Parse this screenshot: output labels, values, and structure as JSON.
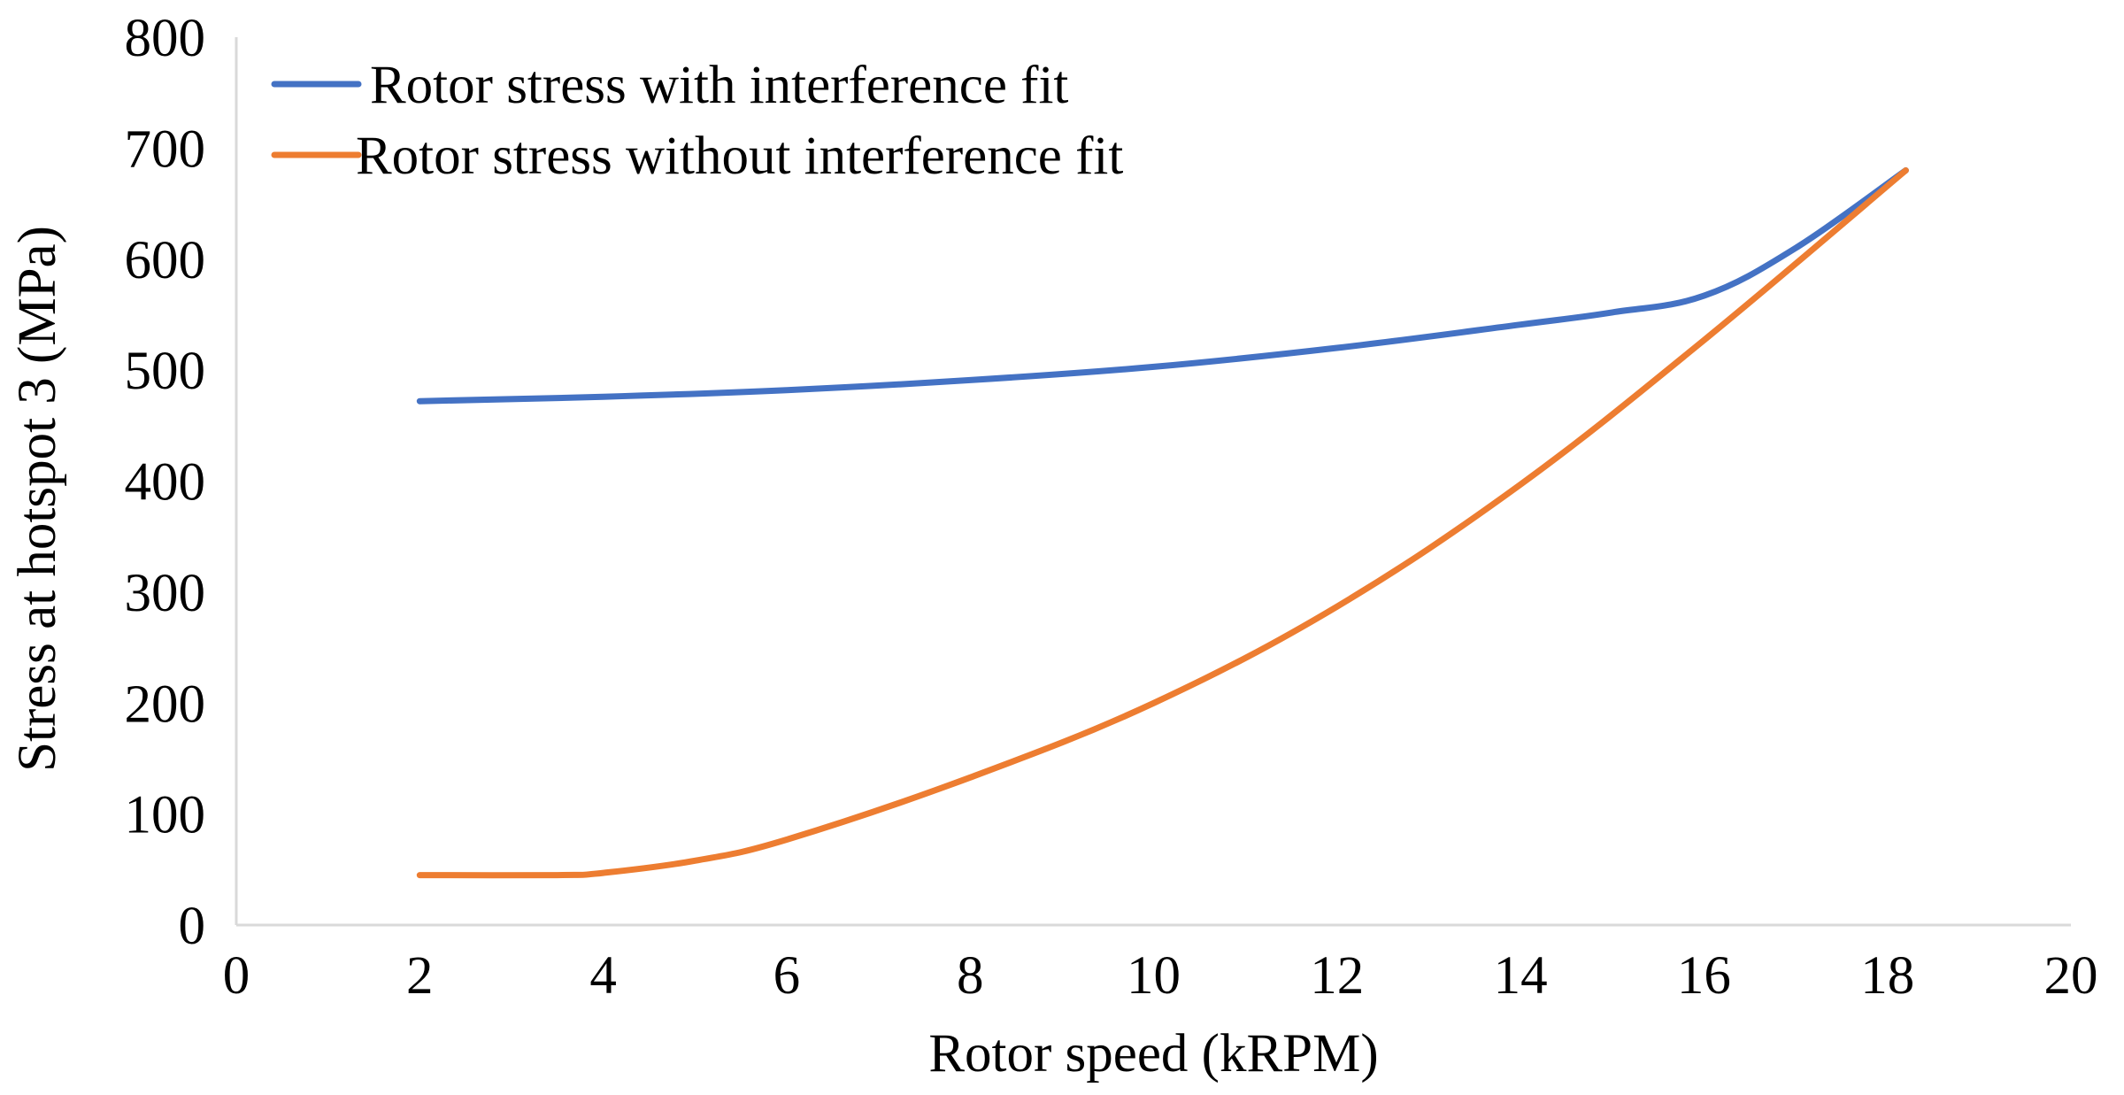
{
  "chart_data": {
    "type": "line",
    "title": "",
    "xlabel": "Rotor speed (kRPM)",
    "ylabel": "Stress at hotspot 3 (MPa)",
    "xlim": [
      0,
      20
    ],
    "ylim": [
      0,
      800
    ],
    "xticks": [
      0,
      2,
      4,
      6,
      8,
      10,
      12,
      14,
      16,
      18,
      20
    ],
    "yticks": [
      0,
      100,
      200,
      300,
      400,
      500,
      600,
      700,
      800
    ],
    "grid": false,
    "legend_position": "top-left",
    "series": [
      {
        "name": "Rotor stress with interference fit",
        "color": "#4472c4",
        "x": [
          2,
          4,
          6,
          8,
          10,
          12,
          14,
          15,
          16,
          17,
          18.2
        ],
        "y": [
          472,
          476,
          482,
          491,
          503,
          520,
          541,
          552,
          567,
          610,
          680
        ]
      },
      {
        "name": "Rotor stress without interference fit",
        "color": "#ed7d31",
        "x": [
          2,
          3.5,
          4,
          5,
          6,
          8,
          10,
          12,
          14,
          16,
          18.2
        ],
        "y": [
          45,
          45,
          47,
          58,
          77,
          133,
          200,
          287,
          397,
          527,
          680
        ]
      }
    ]
  }
}
